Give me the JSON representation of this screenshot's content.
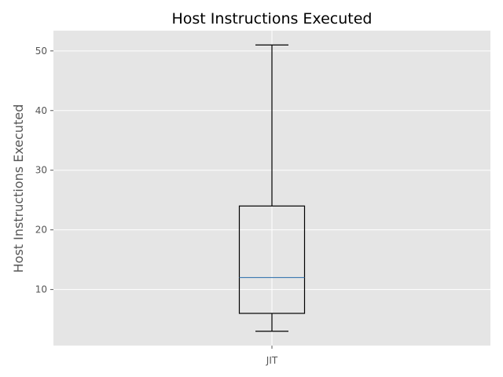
{
  "chart_data": {
    "type": "box",
    "title": "Host Instructions Executed",
    "xlabel": "",
    "ylabel": "Host Instructions Executed",
    "categories": [
      "JIT"
    ],
    "boxes": [
      {
        "name": "JIT",
        "whisker_low": 3,
        "q1": 6,
        "median": 12,
        "q3": 24,
        "whisker_high": 51
      }
    ],
    "yticks": [
      10,
      20,
      30,
      40,
      50
    ],
    "ylim": [
      0.6,
      53.4
    ],
    "grid": true,
    "colors": {
      "background": "#e5e5e5",
      "grid": "#ffffff",
      "box": "#000000",
      "median": "#3a78b0"
    }
  }
}
